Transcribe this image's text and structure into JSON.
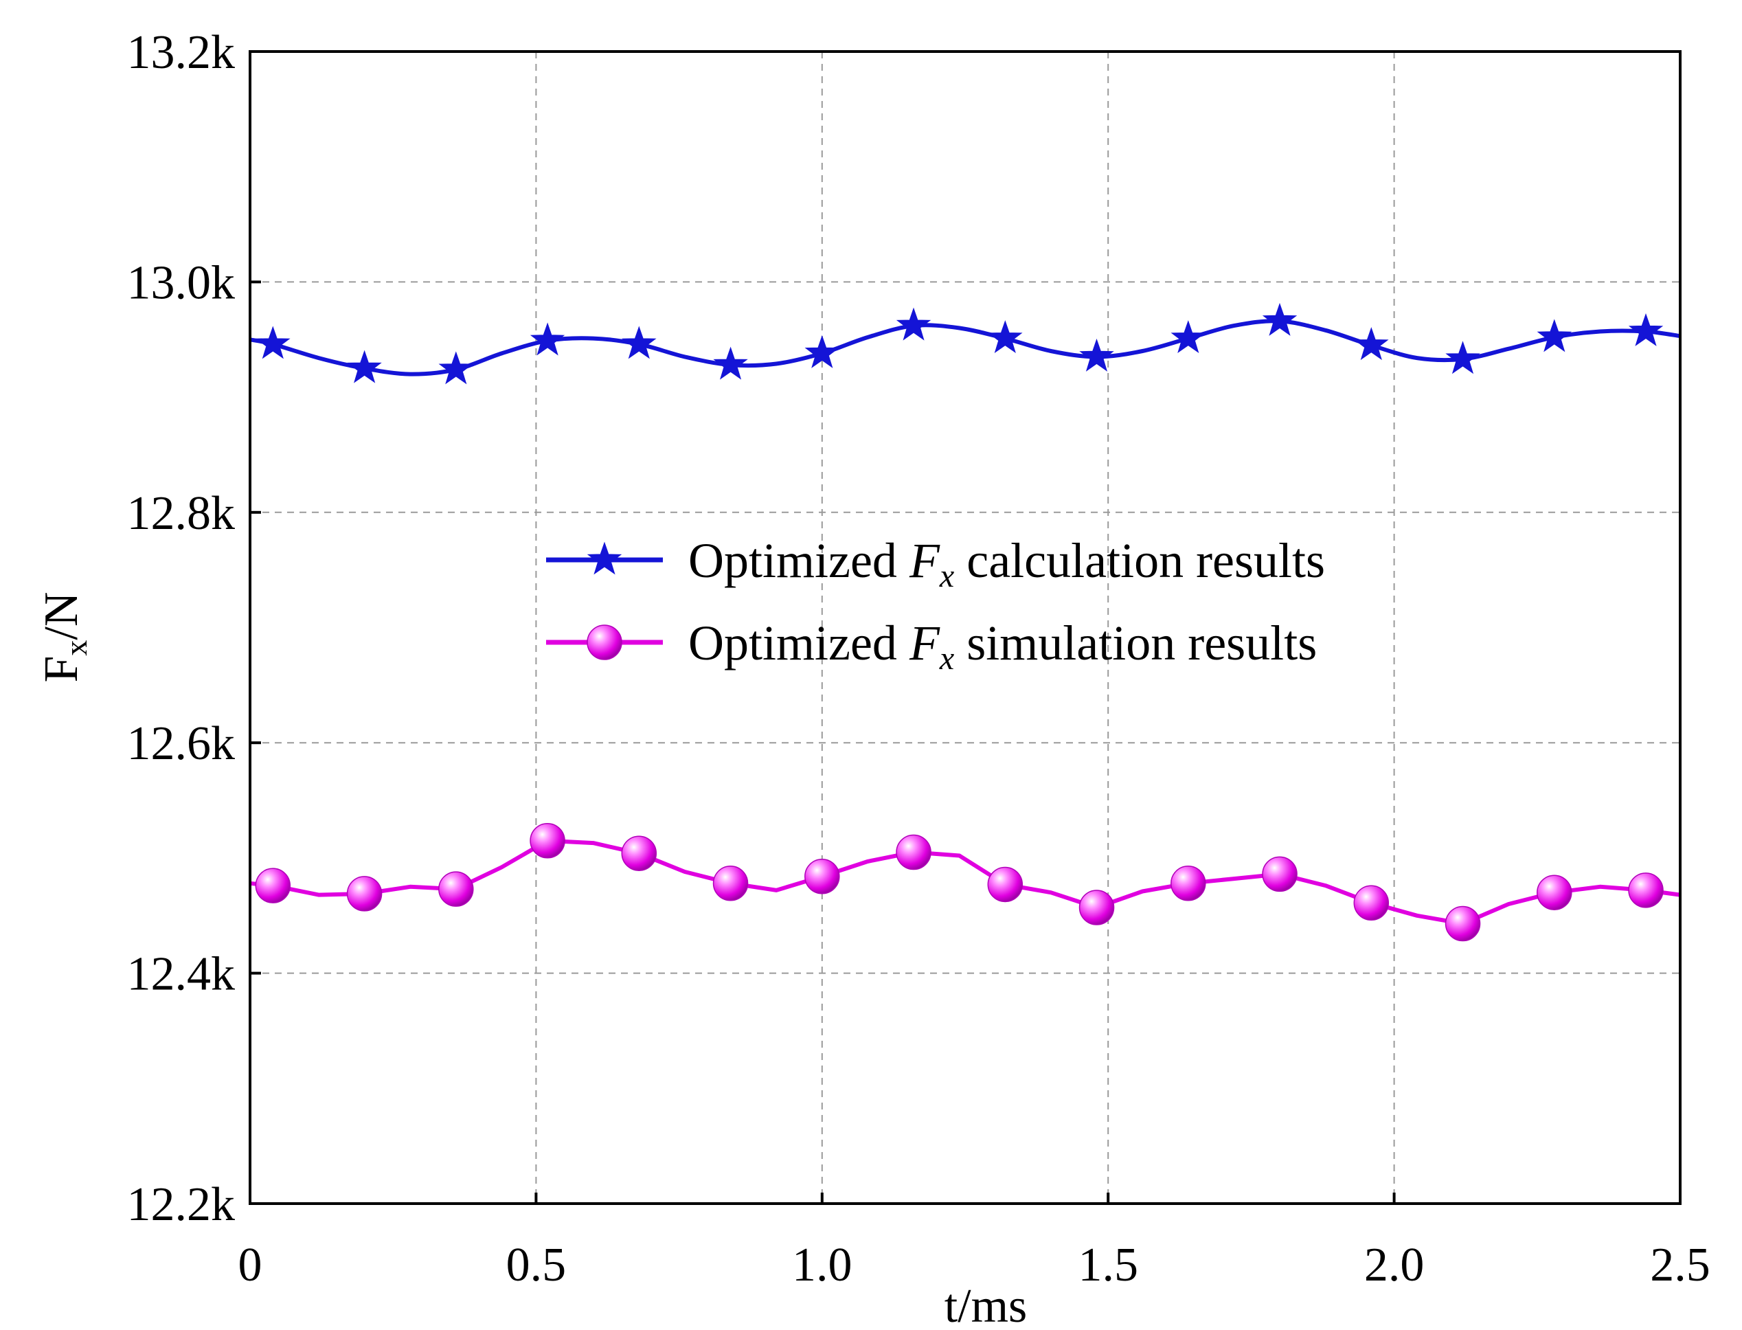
{
  "chart_data": {
    "type": "line",
    "xlabel": "t/ms",
    "ylabel": {
      "main": "F",
      "sub": "x",
      "rest": "/N"
    },
    "xlim": [
      0,
      2.5
    ],
    "ylim": [
      12200,
      13200
    ],
    "xticks": [
      0,
      0.5,
      1.0,
      1.5,
      2.0,
      2.5
    ],
    "xtick_labels": [
      "0",
      "0.5",
      "1.0",
      "1.5",
      "2.0",
      "2.5"
    ],
    "yticks": [
      12200,
      12400,
      12600,
      12800,
      13000,
      13200
    ],
    "ytick_labels": [
      "12.2k",
      "12.4k",
      "12.6k",
      "12.8k",
      "13.0k",
      "13.2k"
    ],
    "grid": true,
    "legend_position": "center",
    "series": [
      {
        "name": "Optimized F_x calculation results",
        "legend_parts": [
          "Optimized ",
          "F",
          "x",
          " calculation results"
        ],
        "color": "#1414d6",
        "marker": "star",
        "smooth": true,
        "x": [
          0.04,
          0.2,
          0.36,
          0.52,
          0.68,
          0.84,
          1.0,
          1.16,
          1.32,
          1.48,
          1.64,
          1.8,
          1.96,
          2.12,
          2.28,
          2.44
        ],
        "y": [
          12946,
          12925,
          12924,
          12949,
          12946,
          12928,
          12938,
          12962,
          12951,
          12935,
          12951,
          12966,
          12945,
          12933,
          12952,
          12957
        ],
        "line_x": [
          0,
          0.04,
          0.12,
          0.2,
          0.28,
          0.36,
          0.44,
          0.52,
          0.6,
          0.68,
          0.76,
          0.84,
          0.92,
          1.0,
          1.08,
          1.16,
          1.24,
          1.32,
          1.4,
          1.48,
          1.56,
          1.64,
          1.72,
          1.8,
          1.88,
          1.96,
          2.04,
          2.12,
          2.2,
          2.28,
          2.36,
          2.44,
          2.5
        ],
        "line_y": [
          12950,
          12946,
          12934,
          12925,
          12920,
          12924,
          12938,
          12949,
          12951,
          12946,
          12935,
          12928,
          12929,
          12938,
          12952,
          12962,
          12960,
          12951,
          12940,
          12935,
          12940,
          12951,
          12962,
          12966,
          12958,
          12945,
          12934,
          12933,
          12942,
          12952,
          12957,
          12957,
          12953
        ]
      },
      {
        "name": "Optimized F_x simulation results",
        "legend_parts": [
          "Optimized ",
          "F",
          "x",
          " simulation results"
        ],
        "color": "#e000e0",
        "marker": "sphere",
        "smooth": false,
        "x": [
          0.04,
          0.2,
          0.36,
          0.52,
          0.68,
          0.84,
          1.0,
          1.16,
          1.32,
          1.48,
          1.64,
          1.8,
          1.96,
          2.12,
          2.28,
          2.44
        ],
        "y": [
          12476,
          12469,
          12473,
          12515,
          12504,
          12478,
          12484,
          12505,
          12477,
          12457,
          12478,
          12486,
          12461,
          12443,
          12470,
          12472
        ],
        "line_x": [
          0,
          0.04,
          0.12,
          0.2,
          0.28,
          0.36,
          0.44,
          0.52,
          0.6,
          0.68,
          0.76,
          0.84,
          0.92,
          1.0,
          1.08,
          1.16,
          1.24,
          1.32,
          1.4,
          1.48,
          1.56,
          1.64,
          1.72,
          1.8,
          1.88,
          1.96,
          2.04,
          2.12,
          2.2,
          2.28,
          2.36,
          2.44,
          2.5
        ],
        "line_y": [
          12478,
          12476,
          12468,
          12469,
          12475,
          12473,
          12492,
          12515,
          12513,
          12504,
          12488,
          12478,
          12472,
          12484,
          12497,
          12505,
          12502,
          12477,
          12470,
          12457,
          12471,
          12478,
          12482,
          12486,
          12476,
          12461,
          12450,
          12443,
          12460,
          12470,
          12475,
          12472,
          12468
        ]
      }
    ]
  }
}
